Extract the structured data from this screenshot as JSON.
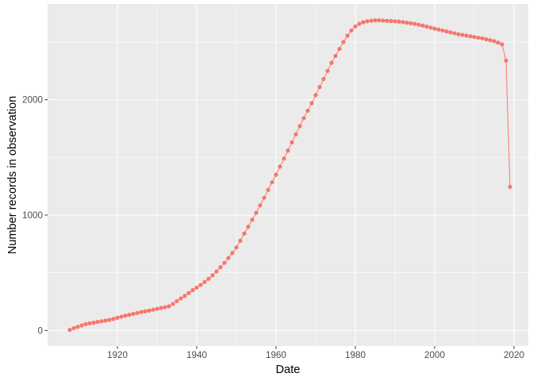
{
  "chart_data": {
    "type": "line",
    "title": "",
    "xlabel": "Date",
    "ylabel": "Number records in observation",
    "x_ticks": [
      1920,
      1940,
      1960,
      1980,
      2000,
      2020
    ],
    "x_tick_labels": [
      "1920",
      "1940",
      "1960",
      "1980",
      "2000",
      "2020"
    ],
    "y_ticks": [
      0,
      1000,
      2000
    ],
    "y_tick_labels": [
      "0",
      "1000",
      "2000"
    ],
    "xlim": [
      1902.4,
      2023.6
    ],
    "ylim": [
      -135,
      2830
    ],
    "grid": true,
    "legend": "none",
    "color": "#F8766D",
    "series": [
      {
        "x": [
          1908,
          1909,
          1910,
          1911,
          1912,
          1913,
          1914,
          1915,
          1916,
          1917,
          1918,
          1919,
          1920,
          1921,
          1922,
          1923,
          1924,
          1925,
          1926,
          1927,
          1928,
          1929,
          1930,
          1931,
          1932,
          1933,
          1934,
          1935,
          1936,
          1937,
          1938,
          1939,
          1940,
          1941,
          1942,
          1943,
          1944,
          1945,
          1946,
          1947,
          1948,
          1949,
          1950,
          1951,
          1952,
          1953,
          1954,
          1955,
          1956,
          1957,
          1958,
          1959,
          1960,
          1961,
          1962,
          1963,
          1964,
          1965,
          1966,
          1967,
          1968,
          1969,
          1970,
          1971,
          1972,
          1973,
          1974,
          1975,
          1976,
          1977,
          1978,
          1979,
          1980,
          1981,
          1982,
          1983,
          1984,
          1985,
          1986,
          1987,
          1988,
          1989,
          1990,
          1991,
          1992,
          1993,
          1994,
          1995,
          1996,
          1997,
          1998,
          1999,
          2000,
          2001,
          2002,
          2003,
          2004,
          2005,
          2006,
          2007,
          2008,
          2009,
          2010,
          2011,
          2012,
          2013,
          2014,
          2015,
          2016,
          2017,
          2018,
          2019
        ],
        "y": [
          5,
          20,
          32,
          44,
          55,
          62,
          68,
          74,
          80,
          86,
          92,
          100,
          110,
          120,
          128,
          136,
          144,
          152,
          160,
          166,
          172,
          180,
          188,
          195,
          202,
          210,
          230,
          255,
          278,
          300,
          325,
          350,
          372,
          395,
          420,
          448,
          478,
          512,
          548,
          586,
          628,
          672,
          720,
          778,
          840,
          900,
          960,
          1020,
          1085,
          1150,
          1218,
          1285,
          1350,
          1420,
          1490,
          1560,
          1630,
          1700,
          1772,
          1840,
          1905,
          1970,
          2040,
          2110,
          2180,
          2250,
          2320,
          2380,
          2440,
          2500,
          2555,
          2600,
          2635,
          2658,
          2672,
          2680,
          2685,
          2688,
          2688,
          2686,
          2684,
          2682,
          2680,
          2677,
          2673,
          2668,
          2663,
          2657,
          2650,
          2642,
          2634,
          2625,
          2616,
          2608,
          2600,
          2592,
          2584,
          2576,
          2568,
          2562,
          2556,
          2550,
          2544,
          2538,
          2532,
          2524,
          2516,
          2508,
          2495,
          2480,
          2340,
          1245
        ]
      }
    ]
  }
}
